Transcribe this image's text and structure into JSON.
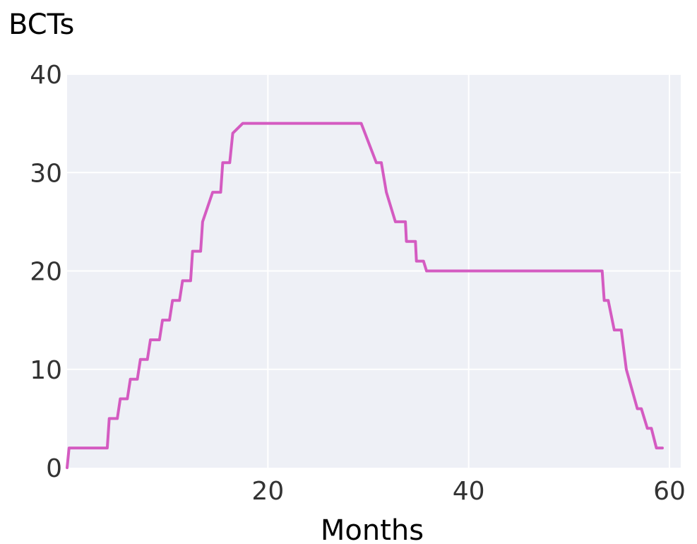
{
  "chart_data": {
    "type": "line",
    "title": "",
    "xlabel": "Months",
    "ylabel": "BCTs",
    "xlim": [
      0,
      60
    ],
    "ylim": [
      0,
      40
    ],
    "x_ticks": [
      20,
      40,
      60
    ],
    "y_ticks": [
      0,
      10,
      20,
      30,
      40
    ],
    "x_tick_labels": [
      "20",
      "40",
      "60"
    ],
    "y_tick_labels": [
      "0",
      "10",
      "20",
      "30",
      "40"
    ],
    "grid": true,
    "legend": "none",
    "plot_background": "#eef0f6",
    "grid_color": "#ffffff",
    "series": [
      {
        "color": "#d45bc1",
        "points": [
          [
            0,
            0
          ],
          [
            0.2,
            2
          ],
          [
            4,
            2
          ],
          [
            4.2,
            5
          ],
          [
            5,
            5
          ],
          [
            5.3,
            7
          ],
          [
            6,
            7
          ],
          [
            6.3,
            9
          ],
          [
            7,
            9
          ],
          [
            7.3,
            11
          ],
          [
            8,
            11
          ],
          [
            8.3,
            13
          ],
          [
            9.2,
            13
          ],
          [
            9.5,
            15
          ],
          [
            10.2,
            15
          ],
          [
            10.5,
            17
          ],
          [
            11.2,
            17
          ],
          [
            11.5,
            19
          ],
          [
            12.3,
            19
          ],
          [
            12.5,
            22
          ],
          [
            13.3,
            22
          ],
          [
            13.5,
            25
          ],
          [
            14.5,
            28
          ],
          [
            15.3,
            28
          ],
          [
            15.5,
            31
          ],
          [
            16.2,
            31
          ],
          [
            16.5,
            34
          ],
          [
            17.5,
            35
          ],
          [
            29.3,
            35
          ],
          [
            30.8,
            31
          ],
          [
            31.3,
            31
          ],
          [
            31.8,
            28
          ],
          [
            32.7,
            25
          ],
          [
            33.7,
            25
          ],
          [
            33.8,
            23
          ],
          [
            34.7,
            23
          ],
          [
            34.8,
            21
          ],
          [
            35.5,
            21
          ],
          [
            35.8,
            20
          ],
          [
            53.3,
            20
          ],
          [
            53.5,
            17
          ],
          [
            53.9,
            17
          ],
          [
            54.5,
            14
          ],
          [
            55.2,
            14
          ],
          [
            55.7,
            10
          ],
          [
            56.8,
            6
          ],
          [
            57.2,
            6
          ],
          [
            57.8,
            4
          ],
          [
            58.2,
            4
          ],
          [
            58.7,
            2
          ],
          [
            59.3,
            2
          ]
        ]
      }
    ]
  }
}
